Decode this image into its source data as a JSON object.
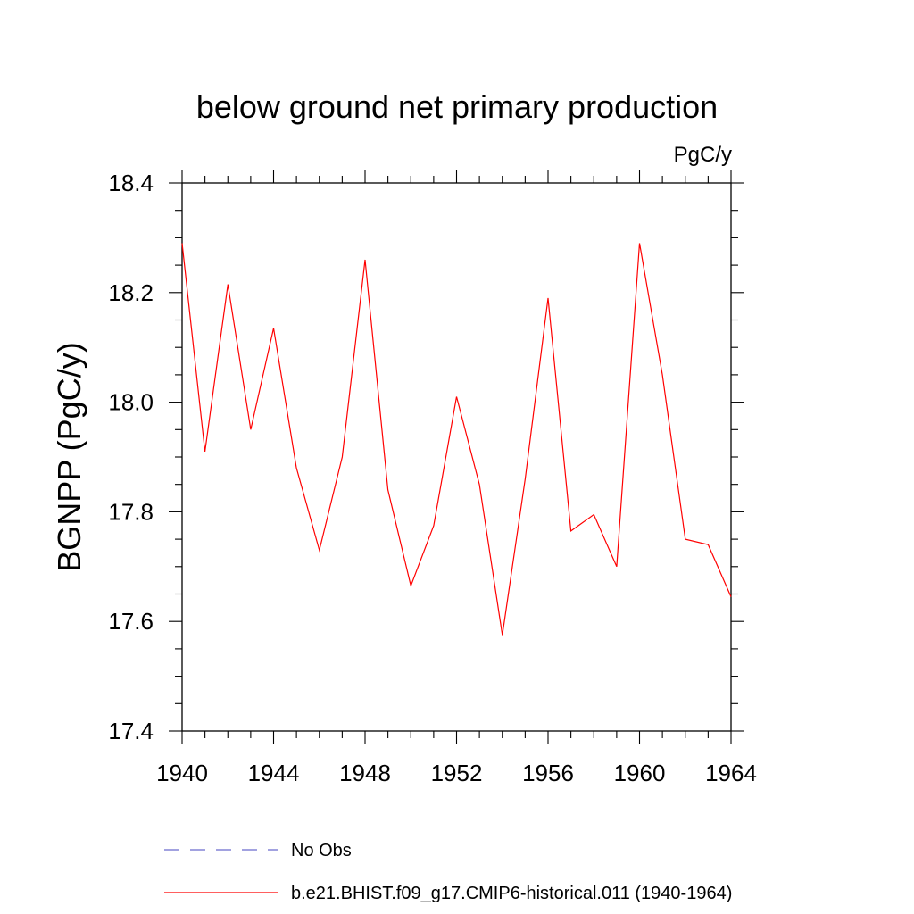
{
  "chart_data": {
    "type": "line",
    "title": "below ground net primary production",
    "units_label": "PgC/y",
    "ylabel": "BGNPP  (PgC/y)",
    "xlabel": "",
    "xlim": [
      1940,
      1964
    ],
    "ylim": [
      17.4,
      18.4
    ],
    "x_ticks": [
      "1940",
      "1944",
      "1948",
      "1952",
      "1956",
      "1960",
      "1964"
    ],
    "y_ticks": [
      "17.4",
      "17.6",
      "17.8",
      "18.0",
      "18.2",
      "18.4"
    ],
    "grid": false,
    "legend_position": "bottom",
    "series": [
      {
        "name": "b.e21.BHIST.f09_g17.CMIP6-historical.011 (1940-1964)",
        "color": "#ff0000",
        "style": "solid",
        "x": [
          1940,
          1941,
          1942,
          1943,
          1944,
          1945,
          1946,
          1947,
          1948,
          1949,
          1950,
          1951,
          1952,
          1953,
          1954,
          1955,
          1956,
          1957,
          1958,
          1959,
          1960,
          1961,
          1962,
          1963,
          1964
        ],
        "y": [
          18.29,
          17.91,
          18.215,
          17.95,
          18.135,
          17.88,
          17.73,
          17.9,
          18.26,
          17.84,
          17.665,
          17.775,
          18.01,
          17.85,
          17.575,
          17.86,
          18.19,
          17.765,
          17.795,
          17.7,
          18.29,
          18.05,
          17.75,
          17.74,
          17.645
        ]
      }
    ],
    "legend": [
      {
        "label": "No Obs",
        "color": "#6a6acd",
        "style": "dashed"
      },
      {
        "label": "b.e21.BHIST.f09_g17.CMIP6-historical.011 (1940-1964)",
        "color": "#ff0000",
        "style": "solid"
      }
    ]
  }
}
